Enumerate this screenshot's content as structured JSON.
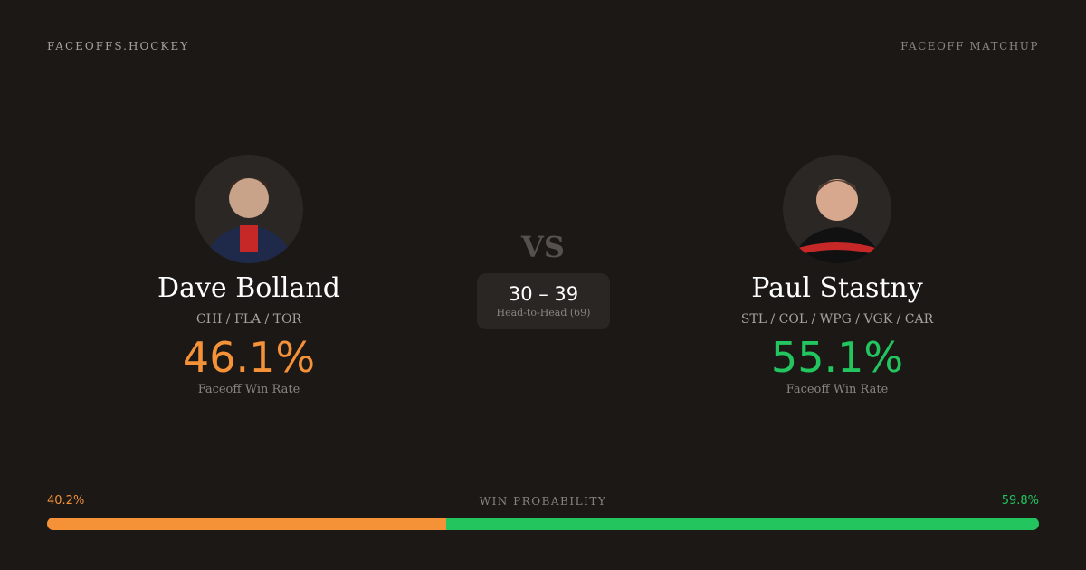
{
  "header": {
    "brand": "FACEOFFS.HOCKEY",
    "tag": "FACEOFF MATCHUP"
  },
  "colors": {
    "left": "#f59238",
    "right": "#22c55e",
    "background": "#1c1816"
  },
  "left": {
    "name": "Dave Bolland",
    "teams": "CHI / FLA / TOR",
    "win_rate": "46.1%",
    "win_rate_label": "Faceoff Win Rate"
  },
  "right": {
    "name": "Paul Stastny",
    "teams": "STL / COL / WPG / VGK / CAR",
    "win_rate": "55.1%",
    "win_rate_label": "Faceoff Win Rate"
  },
  "vs": "VS",
  "head_to_head": {
    "score": "30 – 39",
    "label": "Head-to-Head (69)"
  },
  "win_probability": {
    "label": "WIN PROBABILITY",
    "left": "40.2%",
    "right": "59.8%",
    "left_value": 40.2,
    "right_value": 59.8
  }
}
